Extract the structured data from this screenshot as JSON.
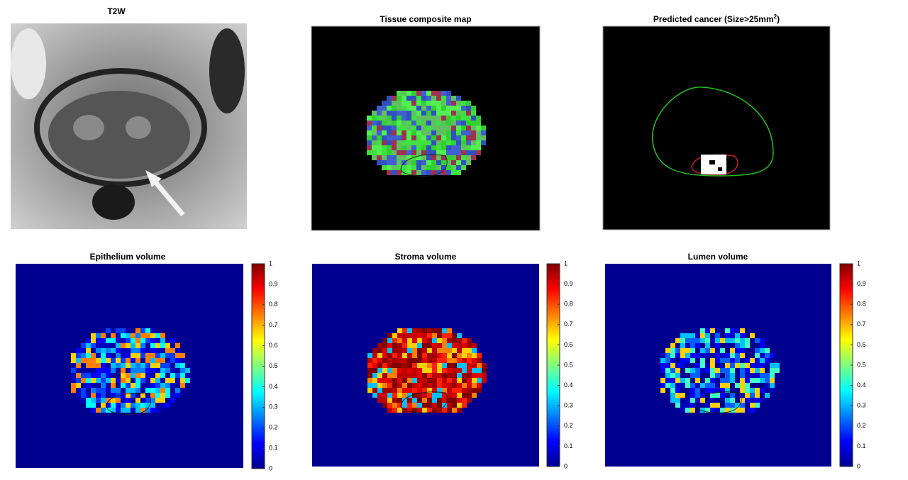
{
  "panels": [
    {
      "title": "T2W"
    },
    {
      "title": "Tissue composite map"
    },
    {
      "title_parts": [
        "Predicted cancer (Size>25mm",
        "2",
        ")"
      ]
    },
    {
      "title": "Epithelium volume",
      "colorbar_ticks": [
        0,
        0.1,
        0.2,
        0.3,
        0.4,
        0.5,
        0.6,
        0.7,
        0.8,
        0.9,
        1
      ]
    },
    {
      "title": "Stroma volume",
      "colorbar_ticks": [
        0,
        0.1,
        0.2,
        0.3,
        0.4,
        0.5,
        0.6,
        0.7,
        0.8,
        0.9,
        1
      ]
    },
    {
      "title": "Lumen volume",
      "colorbar_ticks": [
        0,
        0.1,
        0.2,
        0.3,
        0.4,
        0.5,
        0.6,
        0.7,
        0.8,
        0.9,
        1
      ]
    }
  ]
}
